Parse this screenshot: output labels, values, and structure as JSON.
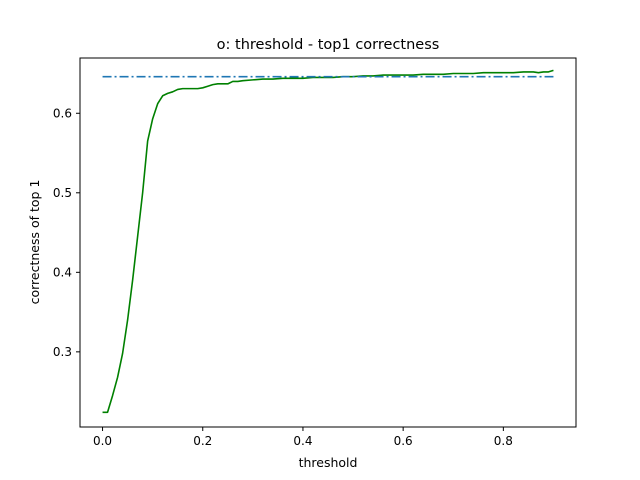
{
  "chart_data": {
    "type": "line",
    "title": "o: threshold - top1 correctness",
    "xlabel": "threshold",
    "ylabel": "correctness of top 1",
    "xlim": [
      -0.045,
      0.945
    ],
    "ylim": [
      0.2055,
      0.6695
    ],
    "xticks": [
      0.0,
      0.2,
      0.4,
      0.6,
      0.8
    ],
    "xtick_labels": [
      "0.0",
      "0.2",
      "0.4",
      "0.6",
      "0.8"
    ],
    "yticks": [
      0.3,
      0.4,
      0.5,
      0.6
    ],
    "ytick_labels": [
      "0.3",
      "0.4",
      "0.5",
      "0.6"
    ],
    "grid": false,
    "legend": "none",
    "series": [
      {
        "style": "solid",
        "color": "#008000",
        "x": [
          0.0,
          0.01,
          0.02,
          0.03,
          0.04,
          0.05,
          0.06,
          0.07,
          0.08,
          0.09,
          0.1,
          0.11,
          0.12,
          0.13,
          0.14,
          0.15,
          0.16,
          0.17,
          0.18,
          0.19,
          0.2,
          0.21,
          0.22,
          0.23,
          0.24,
          0.25,
          0.26,
          0.27,
          0.28,
          0.3,
          0.32,
          0.34,
          0.36,
          0.38,
          0.4,
          0.42,
          0.44,
          0.46,
          0.48,
          0.5,
          0.52,
          0.54,
          0.56,
          0.58,
          0.6,
          0.62,
          0.64,
          0.66,
          0.68,
          0.7,
          0.72,
          0.74,
          0.76,
          0.78,
          0.8,
          0.82,
          0.84,
          0.86,
          0.87,
          0.88,
          0.89,
          0.9
        ],
        "values": [
          0.224,
          0.224,
          0.245,
          0.268,
          0.298,
          0.34,
          0.39,
          0.445,
          0.5,
          0.565,
          0.593,
          0.612,
          0.622,
          0.625,
          0.627,
          0.63,
          0.631,
          0.631,
          0.631,
          0.631,
          0.632,
          0.634,
          0.636,
          0.637,
          0.637,
          0.637,
          0.64,
          0.64,
          0.641,
          0.642,
          0.643,
          0.643,
          0.644,
          0.644,
          0.644,
          0.645,
          0.645,
          0.645,
          0.646,
          0.646,
          0.647,
          0.647,
          0.648,
          0.648,
          0.648,
          0.648,
          0.649,
          0.649,
          0.649,
          0.65,
          0.65,
          0.65,
          0.651,
          0.651,
          0.651,
          0.651,
          0.652,
          0.652,
          0.651,
          0.652,
          0.652,
          0.654
        ]
      },
      {
        "style": "dashdot",
        "color": "#1f77b4",
        "x": [
          0.0,
          0.9
        ],
        "values": [
          0.646,
          0.646
        ]
      }
    ]
  }
}
